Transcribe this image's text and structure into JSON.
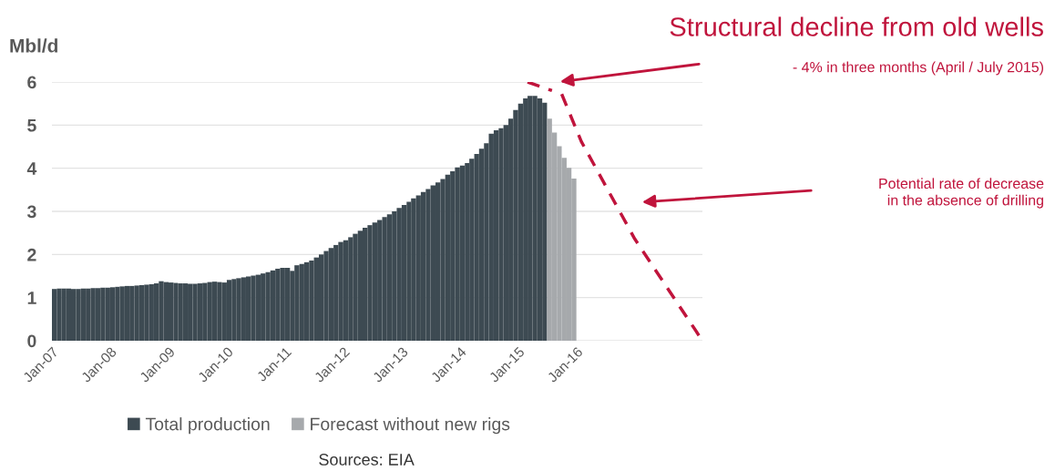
{
  "chart_data": {
    "type": "bar",
    "title": "Structural decline from old wells",
    "ylabel": "Mbl/d",
    "x": [
      "2007-01",
      "2007-02",
      "2007-03",
      "2007-04",
      "2007-05",
      "2007-06",
      "2007-07",
      "2007-08",
      "2007-09",
      "2007-10",
      "2007-11",
      "2007-12",
      "2008-01",
      "2008-02",
      "2008-03",
      "2008-04",
      "2008-05",
      "2008-06",
      "2008-07",
      "2008-08",
      "2008-09",
      "2008-10",
      "2008-11",
      "2008-12",
      "2009-01",
      "2009-02",
      "2009-03",
      "2009-04",
      "2009-05",
      "2009-06",
      "2009-07",
      "2009-08",
      "2009-09",
      "2009-10",
      "2009-11",
      "2009-12",
      "2010-01",
      "2010-02",
      "2010-03",
      "2010-04",
      "2010-05",
      "2010-06",
      "2010-07",
      "2010-08",
      "2010-09",
      "2010-10",
      "2010-11",
      "2010-12",
      "2011-01",
      "2011-02",
      "2011-03",
      "2011-04",
      "2011-05",
      "2011-06",
      "2011-07",
      "2011-08",
      "2011-09",
      "2011-10",
      "2011-11",
      "2011-12",
      "2012-01",
      "2012-02",
      "2012-03",
      "2012-04",
      "2012-05",
      "2012-06",
      "2012-07",
      "2012-08",
      "2012-09",
      "2012-10",
      "2012-11",
      "2012-12",
      "2013-01",
      "2013-02",
      "2013-03",
      "2013-04",
      "2013-05",
      "2013-06",
      "2013-07",
      "2013-08",
      "2013-09",
      "2013-10",
      "2013-11",
      "2013-12",
      "2014-01",
      "2014-02",
      "2014-03",
      "2014-04",
      "2014-05",
      "2014-06",
      "2014-07",
      "2014-08",
      "2014-09",
      "2014-10",
      "2014-11",
      "2014-12",
      "2015-01",
      "2015-02",
      "2015-03",
      "2015-04",
      "2015-05",
      "2015-06",
      "2015-07",
      "2015-08",
      "2015-09",
      "2015-10",
      "2015-11",
      "2015-12"
    ],
    "series": [
      {
        "name": "Total production",
        "color": "#3d4a52",
        "values": [
          1.2,
          1.21,
          1.21,
          1.21,
          1.2,
          1.2,
          1.21,
          1.21,
          1.22,
          1.22,
          1.23,
          1.23,
          1.24,
          1.25,
          1.26,
          1.27,
          1.27,
          1.28,
          1.29,
          1.3,
          1.31,
          1.33,
          1.38,
          1.36,
          1.35,
          1.34,
          1.33,
          1.33,
          1.32,
          1.32,
          1.33,
          1.34,
          1.36,
          1.37,
          1.36,
          1.35,
          1.41,
          1.43,
          1.45,
          1.47,
          1.49,
          1.51,
          1.53,
          1.56,
          1.59,
          1.63,
          1.67,
          1.69,
          1.69,
          1.62,
          1.75,
          1.78,
          1.82,
          1.86,
          1.93,
          2.0,
          2.08,
          2.15,
          2.22,
          2.29,
          2.33,
          2.4,
          2.48,
          2.55,
          2.62,
          2.68,
          2.74,
          2.8,
          2.87,
          2.93,
          3.0,
          3.08,
          3.15,
          3.22,
          3.3,
          3.37,
          3.45,
          3.52,
          3.6,
          3.67,
          3.75,
          3.85,
          3.93,
          4.02,
          4.06,
          4.12,
          4.22,
          4.33,
          4.45,
          4.58,
          4.8,
          4.88,
          4.93,
          5.0,
          5.15,
          5.35,
          5.5,
          5.62,
          5.68,
          5.68,
          5.62,
          5.52,
          null,
          null,
          null,
          null,
          null,
          null
        ]
      },
      {
        "name": "Forecast without new rigs",
        "color": "#a6a9ac",
        "values": [
          null,
          null,
          null,
          null,
          null,
          null,
          null,
          null,
          null,
          null,
          null,
          null,
          null,
          null,
          null,
          null,
          null,
          null,
          null,
          null,
          null,
          null,
          null,
          null,
          null,
          null,
          null,
          null,
          null,
          null,
          null,
          null,
          null,
          null,
          null,
          null,
          null,
          null,
          null,
          null,
          null,
          null,
          null,
          null,
          null,
          null,
          null,
          null,
          null,
          null,
          null,
          null,
          null,
          null,
          null,
          null,
          null,
          null,
          null,
          null,
          null,
          null,
          null,
          null,
          null,
          null,
          null,
          null,
          null,
          null,
          null,
          null,
          null,
          null,
          null,
          null,
          null,
          null,
          null,
          null,
          null,
          null,
          null,
          null,
          null,
          null,
          null,
          null,
          null,
          null,
          null,
          null,
          null,
          null,
          null,
          null,
          null,
          null,
          null,
          null,
          null,
          null,
          5.15,
          4.83,
          4.51,
          4.24,
          4.01,
          3.76
        ]
      },
      {
        "type": "line",
        "color": "#c0143c",
        "line_style": "dashed",
        "x": [
          "2015-03",
          "2015-08",
          "2015-09",
          "2015-10",
          "2016-02",
          "2017-01",
          "2018-03"
        ],
        "values": [
          6.0,
          5.8,
          null,
          5.72,
          4.62,
          2.36,
          0
        ]
      }
    ],
    "xlim": [
      "2007-01",
      "2018-03"
    ],
    "xticks": [
      {
        "value": "2007-01",
        "label": "Jan-07"
      },
      {
        "value": "2008-01",
        "label": "Jan-08"
      },
      {
        "value": "2009-01",
        "label": "Jan-09"
      },
      {
        "value": "2010-01",
        "label": "Jan-10"
      },
      {
        "value": "2011-01",
        "label": "Jan-11"
      },
      {
        "value": "2012-01",
        "label": "Jan-12"
      },
      {
        "value": "2013-01",
        "label": "Jan-13"
      },
      {
        "value": "2014-01",
        "label": "Jan-14"
      },
      {
        "value": "2015-01",
        "label": "Jan-15"
      },
      {
        "value": "2016-01",
        "label": "Jan-16"
      }
    ],
    "ylim": [
      0,
      6
    ],
    "yticks": [
      0,
      1,
      2,
      3,
      4,
      5,
      6
    ],
    "grid": "y",
    "legend": "bottom",
    "annotations": [
      "- 4% in three months (April / July 2015)",
      "Potential rate of decrease\nin the absence of drilling",
      "Sources: EIA"
    ]
  }
}
